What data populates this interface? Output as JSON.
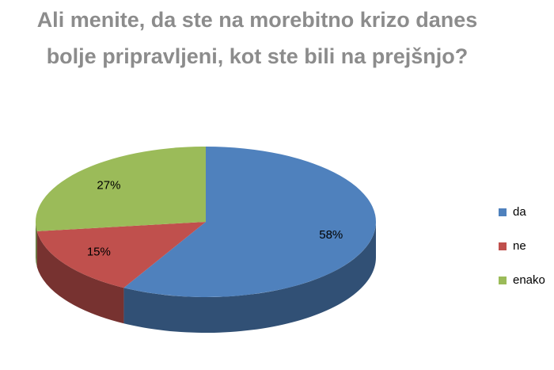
{
  "chart_data": {
    "type": "pie",
    "title": "Ali menite, da ste na morebitno krizo danes bolje pripravljeni, kot ste bili na prejšnjo?",
    "categories": [
      "da",
      "ne",
      "enako"
    ],
    "values": [
      58,
      15,
      27
    ],
    "value_labels": [
      "58%",
      "15%",
      "27%"
    ],
    "colors": [
      "#4f81bd",
      "#c0504d",
      "#9bbb59"
    ],
    "legend": "right"
  }
}
